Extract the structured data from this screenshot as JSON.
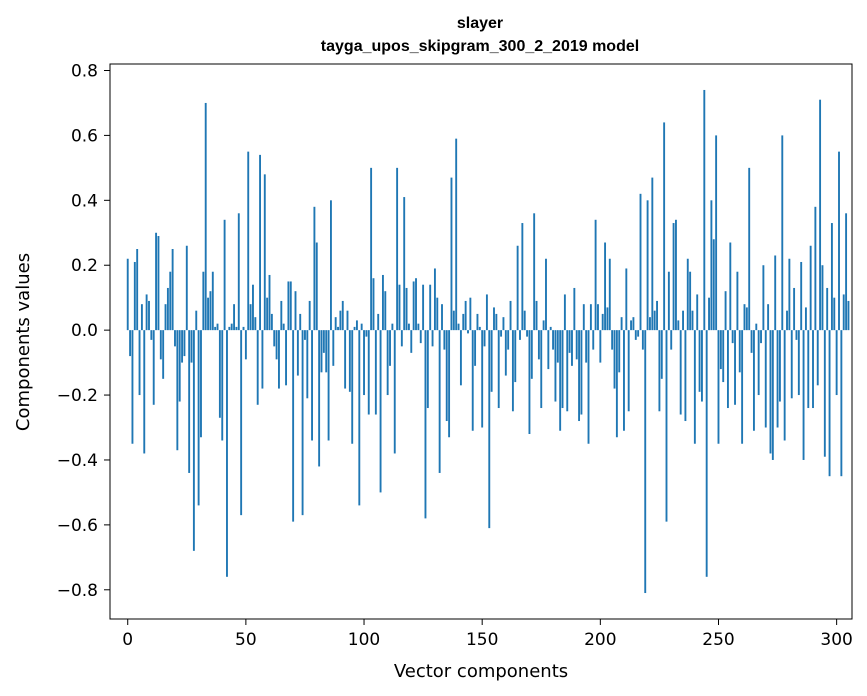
{
  "chart_data": {
    "type": "bar",
    "title": "slayer",
    "subtitle": "tayga_upos_skipgram_300_2_2019 model",
    "xlabel": "Vector components",
    "ylabel": "Components values",
    "xlim": [
      -7.5,
      306.5
    ],
    "ylim": [
      -0.89,
      0.82
    ],
    "xticks": [
      0,
      50,
      100,
      150,
      200,
      250,
      300
    ],
    "xtick_labels": [
      "0",
      "50",
      "100",
      "150",
      "200",
      "250",
      "300"
    ],
    "yticks": [
      -0.8,
      -0.6,
      -0.4,
      -0.2,
      0.0,
      0.2,
      0.4,
      0.6,
      0.8
    ],
    "ytick_labels": [
      "−0.8",
      "−0.6",
      "−0.4",
      "−0.2",
      "0.0",
      "0.2",
      "0.4",
      "0.6",
      "0.8"
    ],
    "bar_color": "#1f77b4",
    "grid": false,
    "values": [
      0.22,
      -0.08,
      -0.35,
      0.21,
      0.25,
      -0.2,
      0.08,
      -0.38,
      0.11,
      0.09,
      -0.03,
      -0.23,
      0.3,
      0.29,
      -0.09,
      -0.15,
      0.08,
      0.13,
      0.18,
      0.25,
      -0.05,
      -0.37,
      -0.22,
      -0.1,
      -0.08,
      0.26,
      -0.44,
      -0.1,
      -0.68,
      0.06,
      -0.54,
      -0.33,
      0.18,
      0.7,
      0.1,
      0.12,
      0.18,
      0.01,
      0.02,
      -0.27,
      -0.34,
      0.34,
      -0.76,
      0.01,
      0.02,
      0.08,
      0.01,
      0.36,
      -0.57,
      0.01,
      -0.09,
      0.55,
      0.08,
      0.14,
      0.04,
      -0.23,
      0.54,
      -0.18,
      0.48,
      0.1,
      0.17,
      0.05,
      -0.05,
      -0.09,
      -0.18,
      0.09,
      0.02,
      -0.17,
      0.15,
      0.15,
      -0.59,
      0.12,
      -0.14,
      0.05,
      -0.57,
      -0.03,
      -0.21,
      0.09,
      -0.34,
      0.38,
      0.27,
      -0.42,
      -0.13,
      -0.07,
      -0.13,
      -0.34,
      0.4,
      -0.11,
      0.04,
      0.01,
      0.06,
      0.09,
      -0.18,
      0.06,
      -0.19,
      -0.35,
      0.01,
      0.03,
      -0.54,
      0.02,
      -0.2,
      -0.02,
      -0.26,
      0.5,
      0.16,
      -0.26,
      0.05,
      -0.5,
      0.17,
      0.12,
      -0.2,
      -0.11,
      0.02,
      -0.38,
      0.5,
      0.14,
      -0.05,
      0.41,
      0.13,
      0.02,
      -0.07,
      0.15,
      0.16,
      0.02,
      -0.04,
      0.14,
      -0.58,
      -0.24,
      0.14,
      -0.05,
      0.19,
      0.1,
      -0.44,
      0.08,
      -0.06,
      -0.28,
      -0.33,
      0.47,
      0.06,
      0.59,
      0.02,
      -0.17,
      0.05,
      0.09,
      -0.01,
      0.1,
      -0.31,
      -0.11,
      0.05,
      0.01,
      -0.3,
      -0.05,
      0.11,
      -0.61,
      -0.19,
      0.07,
      0.05,
      -0.24,
      -0.02,
      0.04,
      -0.14,
      -0.06,
      0.09,
      -0.25,
      -0.16,
      0.26,
      -0.03,
      0.33,
      0.06,
      -0.02,
      -0.32,
      -0.15,
      0.36,
      0.09,
      -0.09,
      -0.24,
      0.03,
      0.22,
      -0.12,
      0.01,
      -0.06,
      -0.22,
      -0.1,
      -0.31,
      -0.24,
      0.11,
      -0.25,
      -0.07,
      -0.11,
      0.13,
      -0.09,
      -0.28,
      -0.26,
      0.08,
      -0.1,
      -0.35,
      0.08,
      -0.06,
      0.34,
      0.08,
      -0.1,
      0.05,
      0.27,
      0.07,
      0.22,
      -0.06,
      -0.18,
      -0.33,
      -0.13,
      0.04,
      -0.31,
      0.19,
      -0.25,
      0.03,
      0.04,
      -0.03,
      -0.02,
      0.42,
      -0.06,
      -0.81,
      0.4,
      0.04,
      0.47,
      0.06,
      0.09,
      -0.25,
      -0.15,
      0.64,
      -0.59,
      0.18,
      -0.06,
      0.33,
      0.34,
      0.03,
      -0.26,
      0.06,
      -0.28,
      0.22,
      0.18,
      0.06,
      -0.35,
      0.11,
      -0.19,
      -0.22,
      0.74,
      -0.76,
      0.1,
      0.4,
      0.28,
      0.6,
      -0.35,
      -0.12,
      -0.16,
      0.12,
      -0.24,
      0.27,
      -0.04,
      -0.23,
      0.18,
      -0.13,
      -0.35,
      0.08,
      0.07,
      0.5,
      -0.07,
      -0.31,
      0.02,
      -0.2,
      -0.04,
      0.2,
      -0.3,
      0.08,
      -0.38,
      -0.4,
      0.23,
      -0.3,
      -0.22,
      0.6,
      -0.34,
      0.06,
      0.22,
      -0.21,
      0.13,
      -0.03,
      -0.2,
      0.21,
      -0.4,
      0.07,
      -0.24,
      0.26,
      -0.24,
      0.38,
      -0.17,
      0.71,
      0.2,
      -0.39,
      0.13,
      -0.45,
      0.33,
      0.1,
      -0.2,
      0.55,
      -0.45,
      0.11,
      0.36,
      0.09
    ]
  }
}
